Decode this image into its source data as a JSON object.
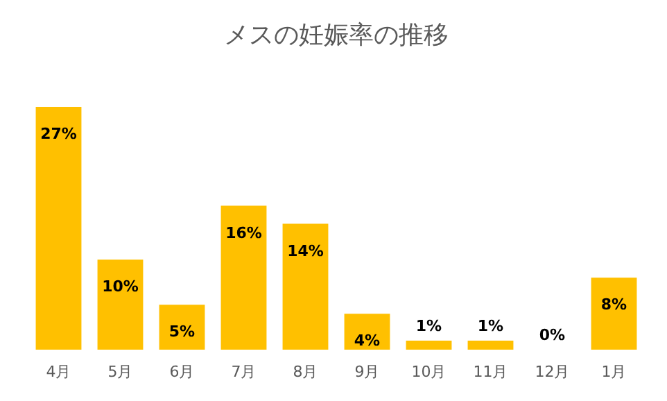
{
  "chart_data": {
    "type": "bar",
    "title": "メスの妊娠率の推移",
    "categories": [
      "4月",
      "5月",
      "6月",
      "7月",
      "8月",
      "9月",
      "10月",
      "11月",
      "12月",
      "1月"
    ],
    "values": [
      27,
      10,
      5,
      16,
      14,
      4,
      1,
      1,
      0,
      8
    ],
    "value_labels": [
      "27%",
      "10%",
      "5%",
      "16%",
      "14%",
      "4%",
      "1%",
      "1%",
      "0%",
      "8%"
    ],
    "color": "#ffc000",
    "grid": false
  }
}
